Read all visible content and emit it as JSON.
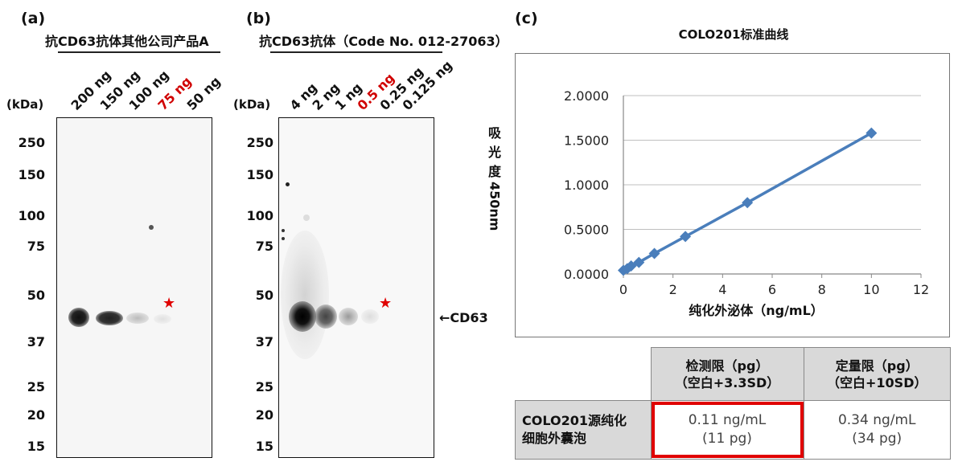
{
  "panel_a": {
    "letter": "(a)",
    "title": "抗CD63抗体其他公司产品A",
    "kda": "(kDa)",
    "mw_markers": [
      "250",
      "150",
      "100",
      "75",
      "50",
      "37",
      "25",
      "20",
      "15"
    ],
    "lanes": [
      {
        "label": "200 ng",
        "highlight": false
      },
      {
        "label": "150 ng",
        "highlight": false
      },
      {
        "label": "100 ng",
        "highlight": false
      },
      {
        "label": "75 ng",
        "highlight": true
      },
      {
        "label": "50 ng",
        "highlight": false
      }
    ],
    "star": "★"
  },
  "panel_b": {
    "letter": "(b)",
    "title": "抗CD63抗体（Code No. 012-27063）",
    "kda": "(kDa)",
    "mw_markers": [
      "250",
      "150",
      "100",
      "75",
      "50",
      "37",
      "25",
      "20",
      "15"
    ],
    "lanes": [
      {
        "label": "4 ng",
        "highlight": false
      },
      {
        "label": "2 ng",
        "highlight": false
      },
      {
        "label": "1 ng",
        "highlight": false
      },
      {
        "label": "0.5 ng",
        "highlight": true
      },
      {
        "label": "0.25 ng",
        "highlight": false
      },
      {
        "label": "0.125 ng",
        "highlight": false
      }
    ],
    "star": "★",
    "band_annotation": "←CD63"
  },
  "panel_c": {
    "letter": "(c)",
    "chart_data": {
      "type": "line",
      "title": "COLO201标准曲线",
      "xlabel": "纯化外泌体（ng/mL）",
      "ylabel": "吸光度 450nm",
      "xlim": [
        0,
        12
      ],
      "ylim": [
        0,
        2
      ],
      "xticks": [
        "0",
        "2",
        "4",
        "6",
        "8",
        "10",
        "12"
      ],
      "yticks": [
        "0.0000",
        "0.5000",
        "1.0000",
        "1.5000",
        "2.0000"
      ],
      "grid": true,
      "color": "#4a7ebb",
      "series": [
        {
          "x": [
            0,
            0.156,
            0.3125,
            0.625,
            1.25,
            2.5,
            5,
            10
          ],
          "y": [
            0.04,
            0.06,
            0.09,
            0.13,
            0.23,
            0.42,
            0.8,
            1.58
          ]
        }
      ]
    }
  },
  "table": {
    "col_headers": [
      [
        "检测限（pg）",
        "（空白+3.3SD）"
      ],
      [
        "定量限（pg）",
        "（空白+10SD）"
      ]
    ],
    "row_header": [
      "COLO201源纯化",
      "细胞外囊泡"
    ],
    "lod": [
      "0.11 ng/mL",
      "(11 pg)"
    ],
    "loq": [
      "0.34 ng/mL",
      "(34 pg)"
    ],
    "highlight_color": "#e00000"
  }
}
